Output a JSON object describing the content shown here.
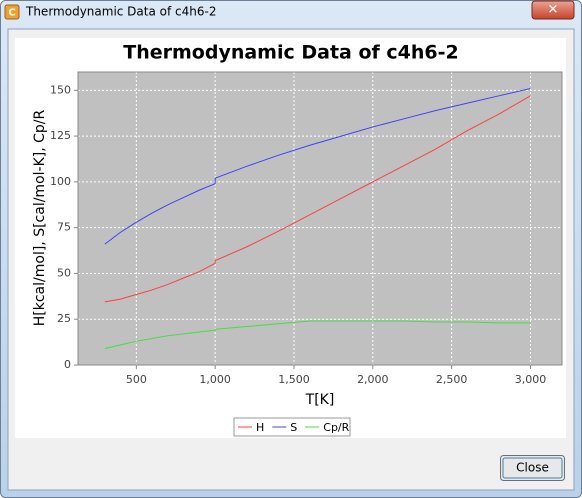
{
  "window": {
    "title": "Thermodynamic Data of c4h6-2",
    "close_button": "Close"
  },
  "chart_data": {
    "type": "line",
    "title": "Thermodynamic Data of c4h6-2",
    "x_label": "T[K]",
    "y_label": "H[kcal/mol], S[cal/mol-K], Cp/R",
    "x": [
      300,
      400,
      500,
      600,
      700,
      800,
      900,
      1000,
      1000,
      1200,
      1400,
      1600,
      1800,
      2000,
      2200,
      2400,
      2600,
      2800,
      3000
    ],
    "series": [
      {
        "name": "H",
        "color": "#ff4040",
        "values": [
          34.5,
          36,
          38.5,
          41,
          44,
          47.5,
          51,
          55.5,
          57,
          64.5,
          73,
          82,
          91,
          100,
          109,
          118,
          128,
          137,
          147
        ]
      },
      {
        "name": "S",
        "color": "#4040ff",
        "values": [
          66,
          72.5,
          78,
          83,
          87.5,
          91.5,
          95.5,
          99,
          102,
          108.5,
          114.5,
          120,
          125,
          130,
          134.5,
          139,
          143,
          147,
          151
        ]
      },
      {
        "name": "Cp/R",
        "color": "#40e040",
        "values": [
          9,
          11,
          13,
          14.5,
          16,
          17,
          18,
          19,
          19.5,
          21,
          22.5,
          24,
          24,
          24,
          24,
          23.5,
          23.5,
          23,
          23
        ]
      }
    ],
    "xlim": [
      130,
      3200
    ],
    "ylim": [
      0,
      160
    ],
    "xticks": [
      500,
      {
        "value": 1000,
        "label": "1,000"
      },
      {
        "value": 1500,
        "label": "1,500"
      },
      {
        "value": 2000,
        "label": "2,000"
      },
      {
        "value": 2500,
        "label": "2,500"
      },
      {
        "value": 3000,
        "label": "3,000"
      }
    ],
    "yticks": [
      0,
      25,
      50,
      75,
      100,
      125,
      150
    ],
    "grid": true,
    "legend": "bottom"
  }
}
